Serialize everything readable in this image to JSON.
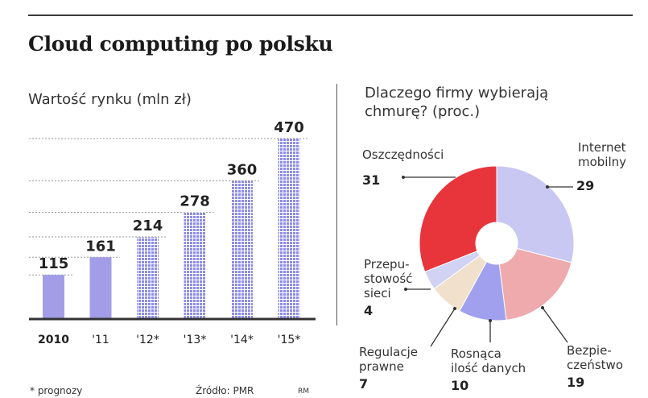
{
  "header": {
    "title": "Cloud computing po polsku"
  },
  "left_panel": {
    "subtitle": "Wartość rynku (mln zł)"
  },
  "right_panel": {
    "subtitle_line1": "Dlaczego firmy wybierają",
    "subtitle_line2": "chmurę? (proc.)"
  },
  "footer": {
    "note": "* prognozy",
    "source": "Źródło: PMR",
    "initials": "RM"
  },
  "colors": {
    "bar_actual": "#a29de6",
    "bar_forecast": "#8c8ce8",
    "axis": "#333333",
    "slice_oszczednosci": "#e8353b",
    "slice_internet": "#c8c8f2",
    "slice_bezpieczenstwo": "#eeaaad",
    "slice_dane": "#a0a0ee",
    "slice_regulacje": "#f0e0cc",
    "slice_przepustowosc": "#d2d2f4"
  },
  "chart_data": [
    {
      "type": "bar",
      "categories": [
        "2010",
        "'11",
        "'12*",
        "'13*",
        "'14*",
        "'15*"
      ],
      "values": [
        115,
        161,
        214,
        278,
        360,
        470
      ],
      "forecast": [
        false,
        false,
        true,
        true,
        true,
        true
      ],
      "title": "Wartość rynku (mln zł)",
      "xlabel": "",
      "ylabel": "",
      "ylim": [
        0,
        470
      ],
      "grid": true
    },
    {
      "type": "pie",
      "title": "Dlaczego firmy wybierają chmurę? (proc.)",
      "donut": true,
      "slices": [
        {
          "name": "Internet mobilny",
          "lines": [
            "Internet",
            "mobilny"
          ],
          "value": 29
        },
        {
          "name": "Bezpieczeństwo",
          "lines": [
            "Bezpie-",
            "czeństwo"
          ],
          "value": 19
        },
        {
          "name": "Rosnąca ilość danych",
          "lines": [
            "Rosnąca",
            "ilość danych"
          ],
          "value": 10
        },
        {
          "name": "Regulacje prawne",
          "lines": [
            "Regulacje",
            "prawne"
          ],
          "value": 7
        },
        {
          "name": "Przepustowość sieci",
          "lines": [
            "Przepu-",
            "stowość",
            "sieci"
          ],
          "value": 4
        },
        {
          "name": "Oszczędności",
          "lines": [
            "Oszczędności"
          ],
          "value": 31
        }
      ]
    }
  ]
}
